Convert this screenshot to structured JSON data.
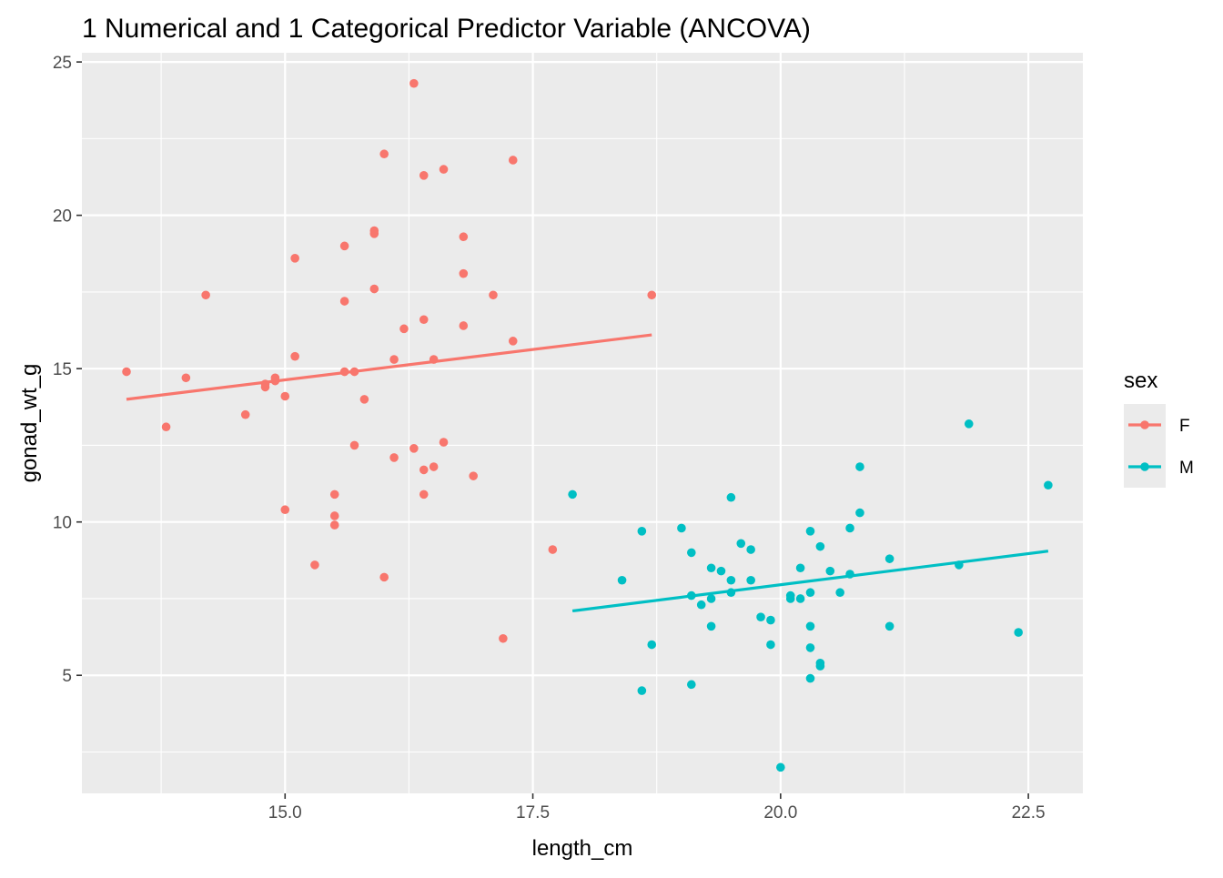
{
  "chart_data": {
    "type": "scatter",
    "title": "1 Numerical and 1 Categorical Predictor Variable (ANCOVA)",
    "xlabel": "length_cm",
    "ylabel": "gonad_wt_g",
    "xlim": [
      12.95,
      23.05
    ],
    "ylim": [
      1.15,
      25.3
    ],
    "x_ticks": [
      15.0,
      17.5,
      20.0,
      22.5
    ],
    "x_tick_labels": [
      "15.0",
      "17.5",
      "20.0",
      "22.5"
    ],
    "y_ticks": [
      5,
      10,
      15,
      20,
      25
    ],
    "y_tick_labels": [
      "5",
      "10",
      "15",
      "20",
      "25"
    ],
    "grid": true,
    "legend": {
      "title": "sex",
      "position": "right"
    },
    "series": [
      {
        "name": "F",
        "color": "#F8766D",
        "points": [
          [
            13.4,
            14.9
          ],
          [
            13.8,
            13.1
          ],
          [
            14.0,
            14.7
          ],
          [
            14.2,
            17.4
          ],
          [
            14.6,
            13.5
          ],
          [
            14.8,
            14.4
          ],
          [
            14.8,
            14.5
          ],
          [
            14.9,
            14.7
          ],
          [
            14.9,
            14.6
          ],
          [
            15.0,
            14.1
          ],
          [
            15.0,
            10.4
          ],
          [
            15.1,
            18.6
          ],
          [
            15.1,
            15.4
          ],
          [
            15.3,
            8.6
          ],
          [
            15.5,
            10.9
          ],
          [
            15.5,
            10.2
          ],
          [
            15.5,
            9.9
          ],
          [
            15.6,
            19.0
          ],
          [
            15.6,
            17.2
          ],
          [
            15.6,
            14.9
          ],
          [
            15.7,
            14.9
          ],
          [
            15.7,
            12.5
          ],
          [
            15.8,
            14.0
          ],
          [
            15.9,
            19.5
          ],
          [
            15.9,
            19.4
          ],
          [
            15.9,
            17.6
          ],
          [
            16.0,
            22.0
          ],
          [
            16.0,
            8.2
          ],
          [
            16.1,
            15.3
          ],
          [
            16.1,
            12.1
          ],
          [
            16.2,
            16.3
          ],
          [
            16.3,
            24.3
          ],
          [
            16.3,
            12.4
          ],
          [
            16.4,
            21.3
          ],
          [
            16.4,
            16.6
          ],
          [
            16.4,
            11.7
          ],
          [
            16.4,
            10.9
          ],
          [
            16.5,
            15.3
          ],
          [
            16.5,
            11.8
          ],
          [
            16.6,
            21.5
          ],
          [
            16.6,
            12.6
          ],
          [
            16.8,
            19.3
          ],
          [
            16.8,
            18.1
          ],
          [
            16.8,
            16.4
          ],
          [
            16.9,
            11.5
          ],
          [
            17.1,
            17.4
          ],
          [
            17.2,
            6.2
          ],
          [
            17.3,
            21.8
          ],
          [
            17.3,
            15.9
          ],
          [
            17.7,
            9.1
          ],
          [
            18.7,
            17.4
          ]
        ],
        "fit_line": [
          [
            13.4,
            14.0
          ],
          [
            18.7,
            16.1
          ]
        ]
      },
      {
        "name": "M",
        "color": "#00BFC4",
        "points": [
          [
            17.9,
            10.9
          ],
          [
            18.4,
            8.1
          ],
          [
            18.6,
            9.7
          ],
          [
            18.6,
            4.5
          ],
          [
            18.7,
            6.0
          ],
          [
            19.0,
            9.8
          ],
          [
            19.1,
            9.0
          ],
          [
            19.1,
            7.6
          ],
          [
            19.1,
            4.7
          ],
          [
            19.2,
            7.3
          ],
          [
            19.3,
            8.5
          ],
          [
            19.3,
            7.5
          ],
          [
            19.3,
            6.6
          ],
          [
            19.4,
            8.4
          ],
          [
            19.5,
            10.8
          ],
          [
            19.5,
            8.1
          ],
          [
            19.5,
            7.7
          ],
          [
            19.6,
            9.3
          ],
          [
            19.7,
            9.1
          ],
          [
            19.7,
            8.1
          ],
          [
            19.8,
            6.9
          ],
          [
            19.9,
            6.8
          ],
          [
            19.9,
            6.0
          ],
          [
            20.0,
            2.0
          ],
          [
            20.1,
            7.6
          ],
          [
            20.1,
            7.5
          ],
          [
            20.2,
            8.5
          ],
          [
            20.2,
            7.5
          ],
          [
            20.3,
            9.7
          ],
          [
            20.3,
            7.7
          ],
          [
            20.3,
            6.6
          ],
          [
            20.3,
            5.9
          ],
          [
            20.3,
            4.9
          ],
          [
            20.4,
            9.2
          ],
          [
            20.4,
            5.4
          ],
          [
            20.4,
            5.3
          ],
          [
            20.5,
            8.4
          ],
          [
            20.6,
            7.7
          ],
          [
            20.7,
            9.8
          ],
          [
            20.7,
            8.3
          ],
          [
            20.8,
            11.8
          ],
          [
            20.8,
            10.3
          ],
          [
            21.1,
            8.8
          ],
          [
            21.1,
            6.6
          ],
          [
            21.8,
            8.6
          ],
          [
            21.9,
            13.2
          ],
          [
            22.4,
            6.4
          ],
          [
            22.7,
            11.2
          ]
        ],
        "fit_line": [
          [
            17.9,
            7.1
          ],
          [
            22.7,
            9.05
          ]
        ]
      }
    ]
  }
}
